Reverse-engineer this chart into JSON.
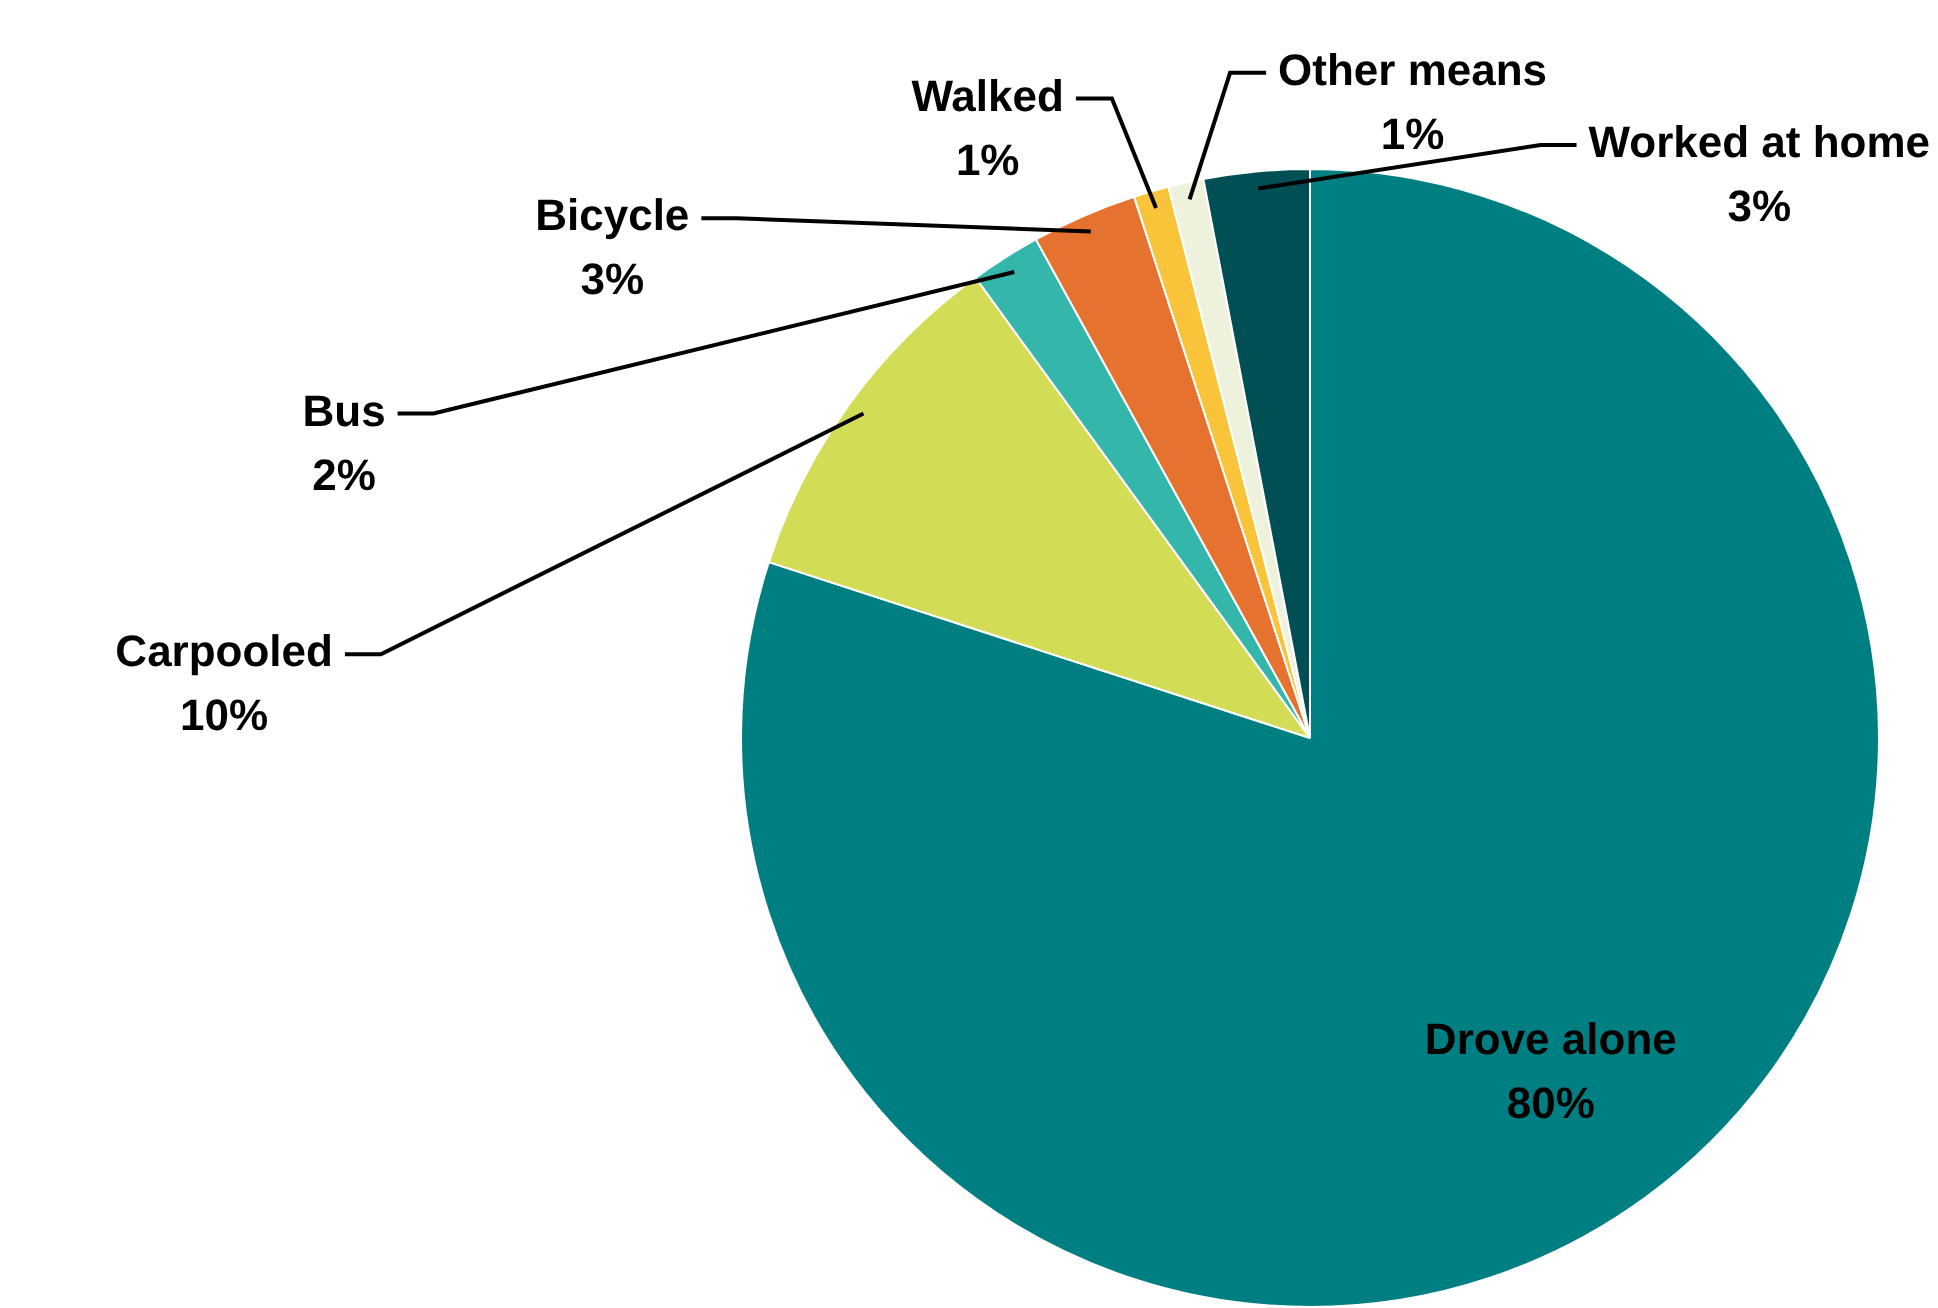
{
  "chart_data": {
    "type": "pie",
    "categories": [
      "Drove alone",
      "Carpooled",
      "Bus",
      "Bicycle",
      "Walked",
      "Other means",
      "Worked at home"
    ],
    "values": [
      80,
      10,
      2,
      3,
      1,
      1,
      3
    ],
    "value_labels": [
      "80%",
      "10%",
      "2%",
      "3%",
      "1%",
      "1%",
      "3%"
    ],
    "colors": [
      "#007f83",
      "#d2dc55",
      "#35b6aa",
      "#e5722e",
      "#f9c33a",
      "#eef2dc",
      "#004f55"
    ],
    "legend": false
  }
}
